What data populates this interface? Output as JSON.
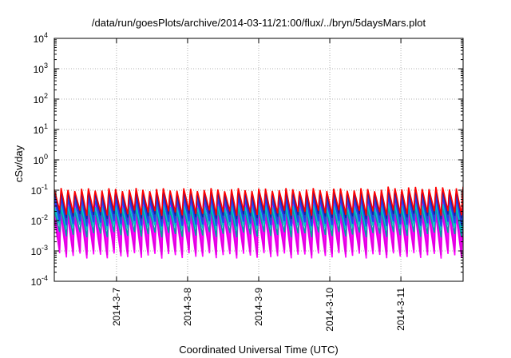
{
  "chart_data": {
    "type": "line",
    "title": "/data/run/goesPlots/archive/2014-03-11/21:00/flux/../bryn/5daysMars.plot",
    "xlabel": "Coordinated Universal Time (UTC)",
    "ylabel": "cSv/day",
    "y_scale": "log",
    "ylim": [
      0.0001,
      10000
    ],
    "y_ticks": [
      {
        "value": 0.0001,
        "mantissa": "10",
        "exp": "-4"
      },
      {
        "value": 0.001,
        "mantissa": "10",
        "exp": "-3"
      },
      {
        "value": 0.01,
        "mantissa": "10",
        "exp": "-2"
      },
      {
        "value": 0.1,
        "mantissa": "10",
        "exp": "-1"
      },
      {
        "value": 1,
        "mantissa": "10",
        "exp": "0"
      },
      {
        "value": 10,
        "mantissa": "10",
        "exp": "1"
      },
      {
        "value": 100,
        "mantissa": "10",
        "exp": "2"
      },
      {
        "value": 1000,
        "mantissa": "10",
        "exp": "3"
      },
      {
        "value": 10000,
        "mantissa": "10",
        "exp": "4"
      }
    ],
    "xlim": [
      "2014-03-06 03:00",
      "2014-03-11 21:00"
    ],
    "x_ticks": [
      {
        "value": "2014-03-07 00:00",
        "label": "2014-3-7"
      },
      {
        "value": "2014-03-08 00:00",
        "label": "2014-3-8"
      },
      {
        "value": "2014-03-09 00:00",
        "label": "2014-3-9"
      },
      {
        "value": "2014-03-10 00:00",
        "label": "2014-3-10"
      },
      {
        "value": "2014-03-11 00:00",
        "label": "2014-3-11"
      }
    ],
    "grid": true,
    "legend": "none",
    "pattern": {
      "start": "2014-03-06 03:00",
      "cycle_hours": 2.3,
      "cycles": 60
    },
    "series": [
      {
        "color": "#ff00ff",
        "peak": 0.012,
        "trough": 0.0007
      },
      {
        "color": "#ff00ff",
        "peak": 0.02,
        "trough": 0.0011
      },
      {
        "color": "#ff00ff",
        "peak": 0.03,
        "trough": 0.0016
      },
      {
        "color": "#ff00ff",
        "peak": 0.045,
        "trough": 0.0025
      },
      {
        "color": "#e000e0",
        "peak": 0.015,
        "trough": 0.0009
      },
      {
        "color": "#00a0a0",
        "peak": 0.022,
        "trough": 0.0035
      },
      {
        "color": "#00c8c8",
        "peak": 0.03,
        "trough": 0.006
      },
      {
        "color": "#2040ff",
        "peak": 0.05,
        "trough": 0.008
      },
      {
        "color": "#3040d0",
        "peak": 0.07,
        "trough": 0.011
      },
      {
        "color": "#2020a0",
        "peak": 0.085,
        "trough": 0.014
      },
      {
        "color": "#ff0000",
        "peak": 0.105,
        "trough": 0.018
      }
    ]
  }
}
